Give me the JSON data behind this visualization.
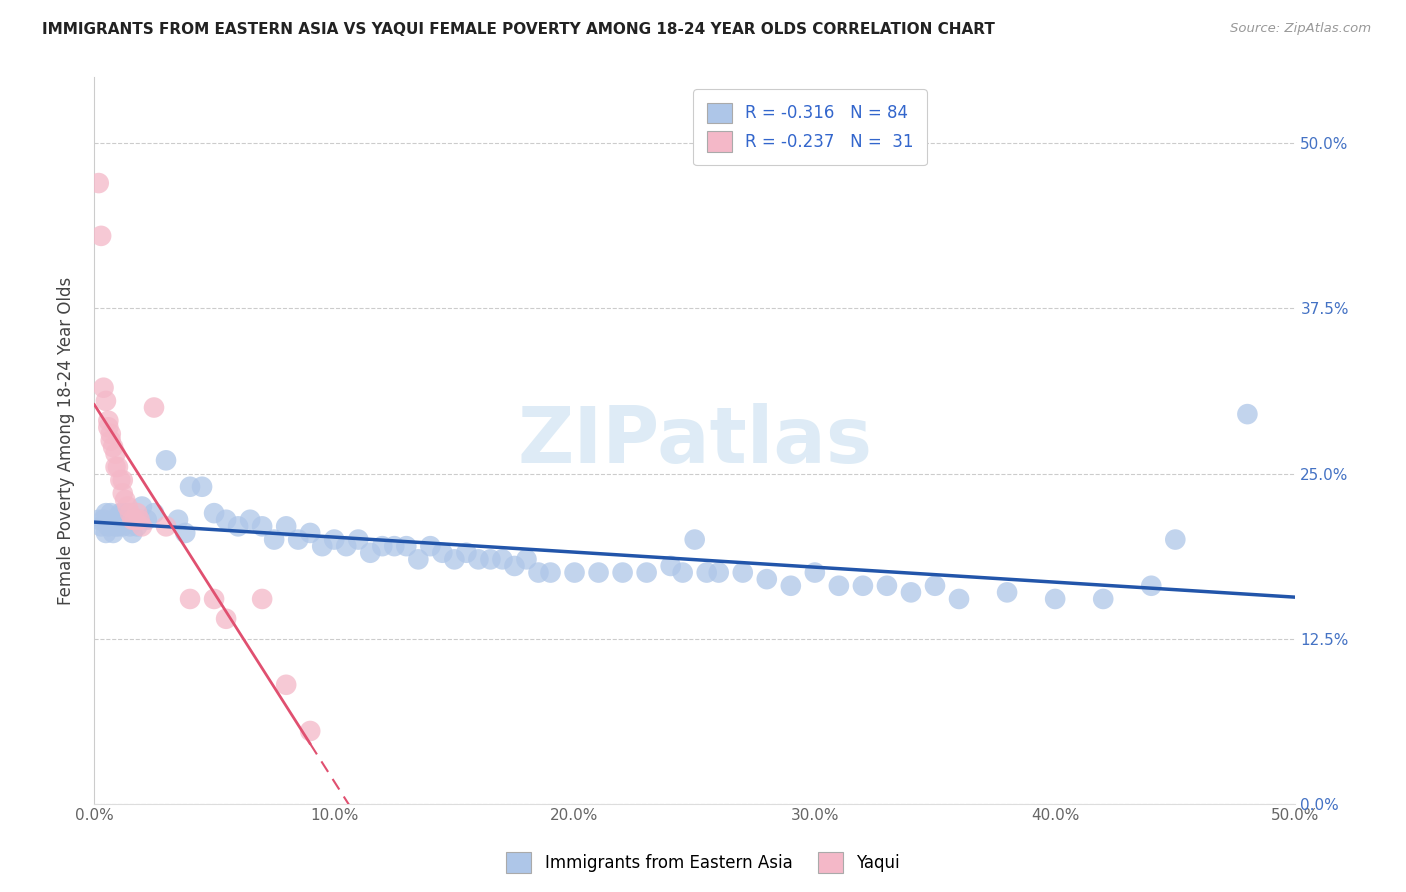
{
  "title": "IMMIGRANTS FROM EASTERN ASIA VS YAQUI FEMALE POVERTY AMONG 18-24 YEAR OLDS CORRELATION CHART",
  "source": "Source: ZipAtlas.com",
  "ylabel": "Female Poverty Among 18-24 Year Olds",
  "blue_color": "#aec6e8",
  "pink_color": "#f4b8c8",
  "blue_line_color": "#2255aa",
  "pink_line_color": "#e05070",
  "blue_scatter": [
    [
      0.002,
      0.215
    ],
    [
      0.003,
      0.21
    ],
    [
      0.004,
      0.215
    ],
    [
      0.005,
      0.22
    ],
    [
      0.005,
      0.205
    ],
    [
      0.006,
      0.21
    ],
    [
      0.007,
      0.22
    ],
    [
      0.008,
      0.215
    ],
    [
      0.008,
      0.205
    ],
    [
      0.009,
      0.21
    ],
    [
      0.01,
      0.215
    ],
    [
      0.01,
      0.21
    ],
    [
      0.011,
      0.22
    ],
    [
      0.012,
      0.21
    ],
    [
      0.012,
      0.22
    ],
    [
      0.013,
      0.215
    ],
    [
      0.014,
      0.22
    ],
    [
      0.015,
      0.215
    ],
    [
      0.015,
      0.21
    ],
    [
      0.016,
      0.205
    ],
    [
      0.017,
      0.215
    ],
    [
      0.018,
      0.21
    ],
    [
      0.02,
      0.225
    ],
    [
      0.022,
      0.215
    ],
    [
      0.025,
      0.22
    ],
    [
      0.03,
      0.26
    ],
    [
      0.035,
      0.215
    ],
    [
      0.038,
      0.205
    ],
    [
      0.04,
      0.24
    ],
    [
      0.045,
      0.24
    ],
    [
      0.05,
      0.22
    ],
    [
      0.055,
      0.215
    ],
    [
      0.06,
      0.21
    ],
    [
      0.065,
      0.215
    ],
    [
      0.07,
      0.21
    ],
    [
      0.075,
      0.2
    ],
    [
      0.08,
      0.21
    ],
    [
      0.085,
      0.2
    ],
    [
      0.09,
      0.205
    ],
    [
      0.095,
      0.195
    ],
    [
      0.1,
      0.2
    ],
    [
      0.105,
      0.195
    ],
    [
      0.11,
      0.2
    ],
    [
      0.115,
      0.19
    ],
    [
      0.12,
      0.195
    ],
    [
      0.125,
      0.195
    ],
    [
      0.13,
      0.195
    ],
    [
      0.135,
      0.185
    ],
    [
      0.14,
      0.195
    ],
    [
      0.145,
      0.19
    ],
    [
      0.15,
      0.185
    ],
    [
      0.155,
      0.19
    ],
    [
      0.16,
      0.185
    ],
    [
      0.165,
      0.185
    ],
    [
      0.17,
      0.185
    ],
    [
      0.175,
      0.18
    ],
    [
      0.18,
      0.185
    ],
    [
      0.185,
      0.175
    ],
    [
      0.19,
      0.175
    ],
    [
      0.2,
      0.175
    ],
    [
      0.21,
      0.175
    ],
    [
      0.22,
      0.175
    ],
    [
      0.23,
      0.175
    ],
    [
      0.24,
      0.18
    ],
    [
      0.245,
      0.175
    ],
    [
      0.25,
      0.2
    ],
    [
      0.255,
      0.175
    ],
    [
      0.26,
      0.175
    ],
    [
      0.27,
      0.175
    ],
    [
      0.28,
      0.17
    ],
    [
      0.29,
      0.165
    ],
    [
      0.3,
      0.175
    ],
    [
      0.31,
      0.165
    ],
    [
      0.32,
      0.165
    ],
    [
      0.33,
      0.165
    ],
    [
      0.34,
      0.16
    ],
    [
      0.35,
      0.165
    ],
    [
      0.36,
      0.155
    ],
    [
      0.38,
      0.16
    ],
    [
      0.4,
      0.155
    ],
    [
      0.42,
      0.155
    ],
    [
      0.44,
      0.165
    ],
    [
      0.45,
      0.2
    ],
    [
      0.48,
      0.295
    ]
  ],
  "pink_scatter": [
    [
      0.002,
      0.47
    ],
    [
      0.003,
      0.43
    ],
    [
      0.004,
      0.315
    ],
    [
      0.005,
      0.305
    ],
    [
      0.006,
      0.29
    ],
    [
      0.006,
      0.285
    ],
    [
      0.007,
      0.28
    ],
    [
      0.007,
      0.275
    ],
    [
      0.008,
      0.27
    ],
    [
      0.009,
      0.265
    ],
    [
      0.009,
      0.255
    ],
    [
      0.01,
      0.255
    ],
    [
      0.011,
      0.245
    ],
    [
      0.012,
      0.245
    ],
    [
      0.012,
      0.235
    ],
    [
      0.013,
      0.23
    ],
    [
      0.014,
      0.225
    ],
    [
      0.015,
      0.22
    ],
    [
      0.016,
      0.215
    ],
    [
      0.017,
      0.215
    ],
    [
      0.018,
      0.22
    ],
    [
      0.019,
      0.215
    ],
    [
      0.02,
      0.21
    ],
    [
      0.025,
      0.3
    ],
    [
      0.03,
      0.21
    ],
    [
      0.04,
      0.155
    ],
    [
      0.05,
      0.155
    ],
    [
      0.055,
      0.14
    ],
    [
      0.07,
      0.155
    ],
    [
      0.08,
      0.09
    ],
    [
      0.09,
      0.055
    ]
  ],
  "blue_R": -0.316,
  "blue_N": 84,
  "pink_R": -0.237,
  "pink_N": 31,
  "xlim": [
    0.0,
    0.5
  ],
  "ylim": [
    0.0,
    0.55
  ],
  "x_ticks": [
    0.0,
    0.1,
    0.2,
    0.3,
    0.4,
    0.5
  ],
  "y_ticks": [
    0.0,
    0.125,
    0.25,
    0.375,
    0.5
  ],
  "watermark": "ZIPatlas",
  "legend_blue_label": "Immigrants from Eastern Asia",
  "legend_pink_label": "Yaqui"
}
